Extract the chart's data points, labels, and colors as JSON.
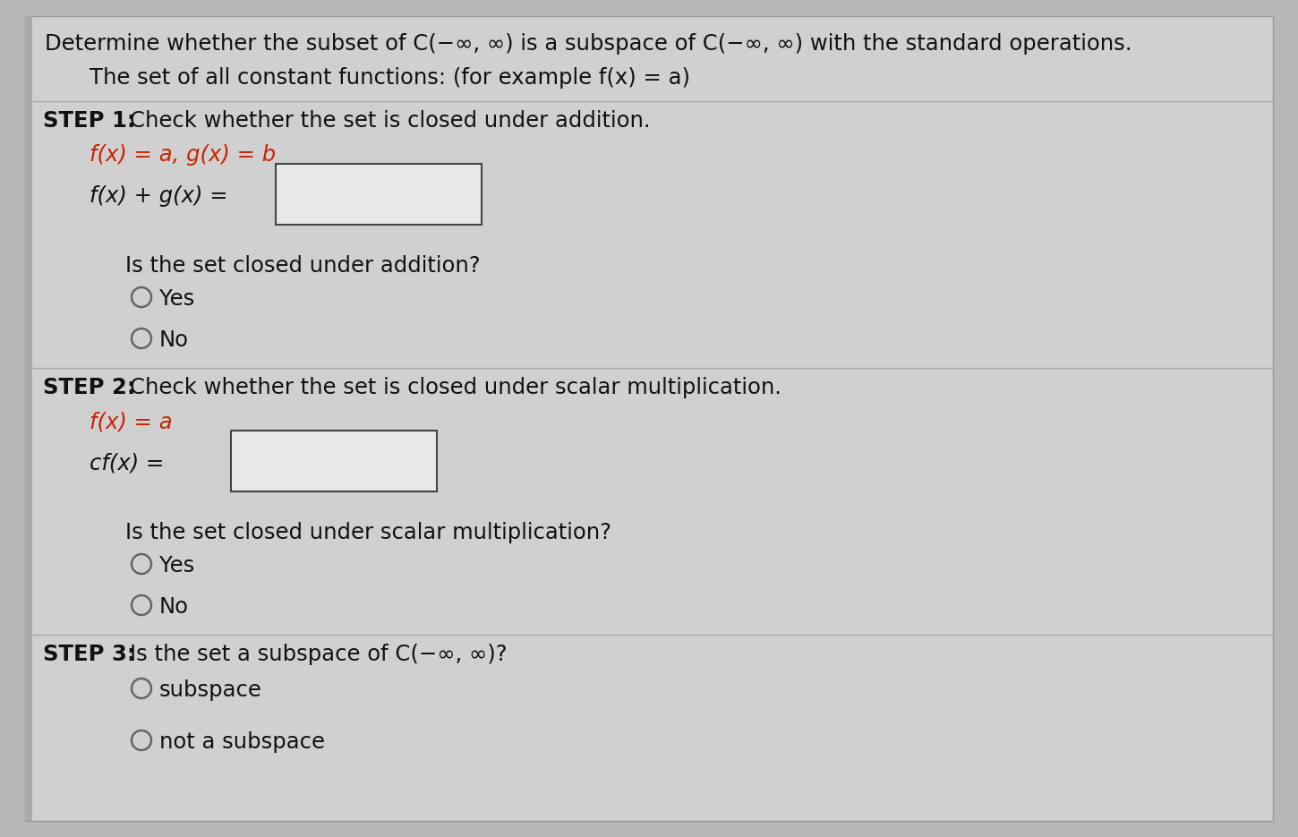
{
  "bg_color": "#b8b8b8",
  "panel_color": "#d0d0d0",
  "text_color": "#111111",
  "red_color": "#cc2200",
  "title_line": "Determine whether the subset of C(−∞, ∞) is a subspace of C(−∞, ∞) with the standard operations.",
  "subtitle": "The set of all constant functions: (for example f(x) = a)",
  "step1_bold": "STEP 1:",
  "step1_text": "Check whether the set is closed under addition.",
  "step1_sub1_red": "f(x) = a, g(x) = b",
  "step1_label": "f(x) + g(x) =",
  "step1_q": "Is the set closed under addition?",
  "step1_yes": "Yes",
  "step1_no": "No",
  "step2_bold": "STEP 2:",
  "step2_text": "Check whether the set is closed under scalar multiplication.",
  "step2_sub1_red": "f(x) = a",
  "step2_label": "cf(x) =",
  "step2_q": "Is the set closed under scalar multiplication?",
  "step2_yes": "Yes",
  "step2_no": "No",
  "step3_bold": "STEP 3:",
  "step3_text": "Is the set a subspace of C(−∞, ∞)?",
  "step3_opt1": "subspace",
  "step3_opt2": "not a subspace",
  "font_family": "DejaVu Sans",
  "base_font_size": 17.5
}
